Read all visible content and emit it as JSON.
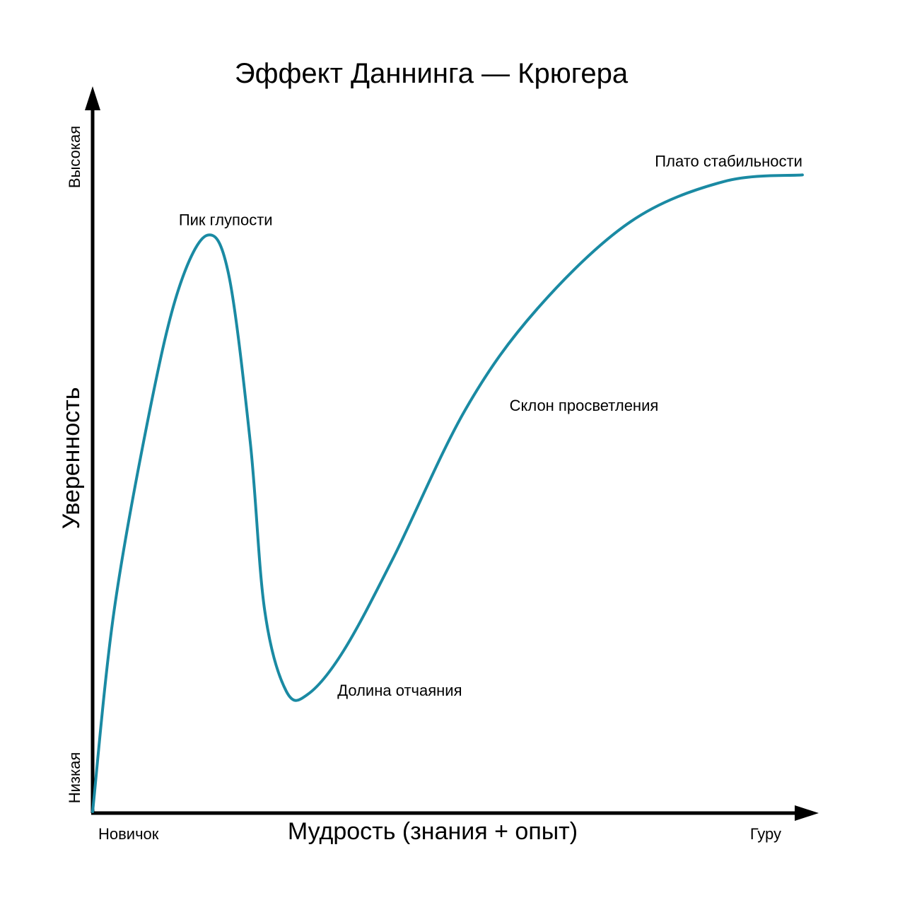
{
  "chart_data": {
    "type": "line",
    "title": "Эффект Даннинга — Крюгера",
    "xlabel": "Мудрость (знания + опыт)",
    "ylabel": "Уверенность",
    "x_ticks": {
      "start": "Новичок",
      "end": "Гуру"
    },
    "y_ticks": {
      "low": "Низкая",
      "high": "Высокая"
    },
    "xlim": [
      0,
      100
    ],
    "ylim": [
      0,
      100
    ],
    "grid": false,
    "legend": "none",
    "series": [
      {
        "points": [
          [
            0,
            0
          ],
          [
            3,
            30
          ],
          [
            8,
            60
          ],
          [
            12,
            78
          ],
          [
            16,
            86
          ],
          [
            19,
            80
          ],
          [
            22,
            55
          ],
          [
            24,
            30
          ],
          [
            27,
            18
          ],
          [
            30,
            17.5
          ],
          [
            35,
            24
          ],
          [
            42,
            38
          ],
          [
            52,
            60
          ],
          [
            62,
            75
          ],
          [
            75,
            88
          ],
          [
            88,
            94
          ],
          [
            99,
            95
          ]
        ],
        "color": "#1a8aa3"
      }
    ],
    "annotations": [
      {
        "text": "Пик глупости",
        "x": 16,
        "y": 86,
        "anchor": "above"
      },
      {
        "text": "Долина отчаяния",
        "x": 30,
        "y": 17.5,
        "anchor": "right"
      },
      {
        "text": "Склон просветления",
        "x": 54,
        "y": 60,
        "anchor": "right"
      },
      {
        "text": "Плато стабильности",
        "x": 99,
        "y": 95,
        "anchor": "above-left"
      }
    ],
    "axis_color": "#000000"
  }
}
